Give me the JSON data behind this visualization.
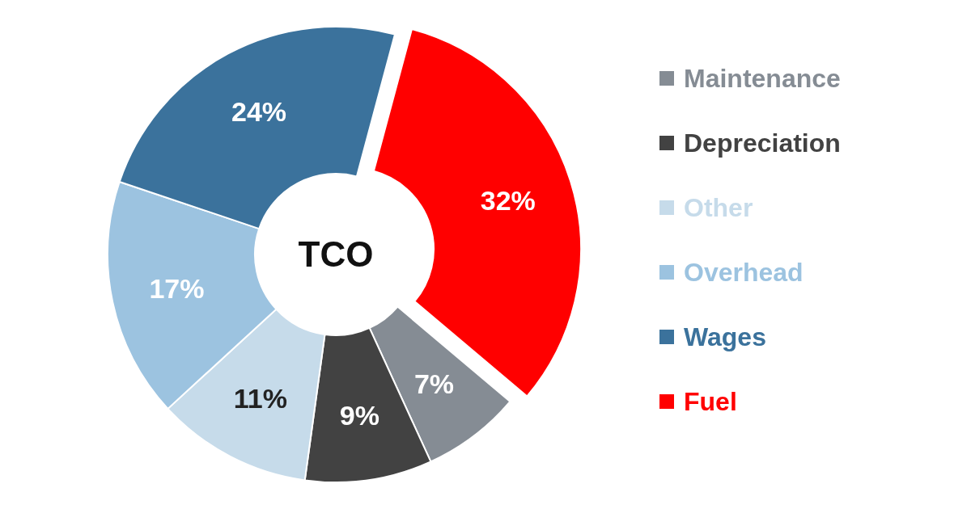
{
  "chart_data": {
    "type": "donut",
    "title": "TCO",
    "categories": [
      "Fuel",
      "Maintenance",
      "Depreciation",
      "Other",
      "Overhead",
      "Wages"
    ],
    "values": [
      32,
      7,
      9,
      11,
      17,
      24
    ],
    "colors": [
      "#ff0000",
      "#858c94",
      "#424242",
      "#c6dbea",
      "#9cc3e0",
      "#3b729c"
    ],
    "value_labels": [
      "32%",
      "7%",
      "9%",
      "11%",
      "17%",
      "24%"
    ],
    "legend": "right"
  }
}
